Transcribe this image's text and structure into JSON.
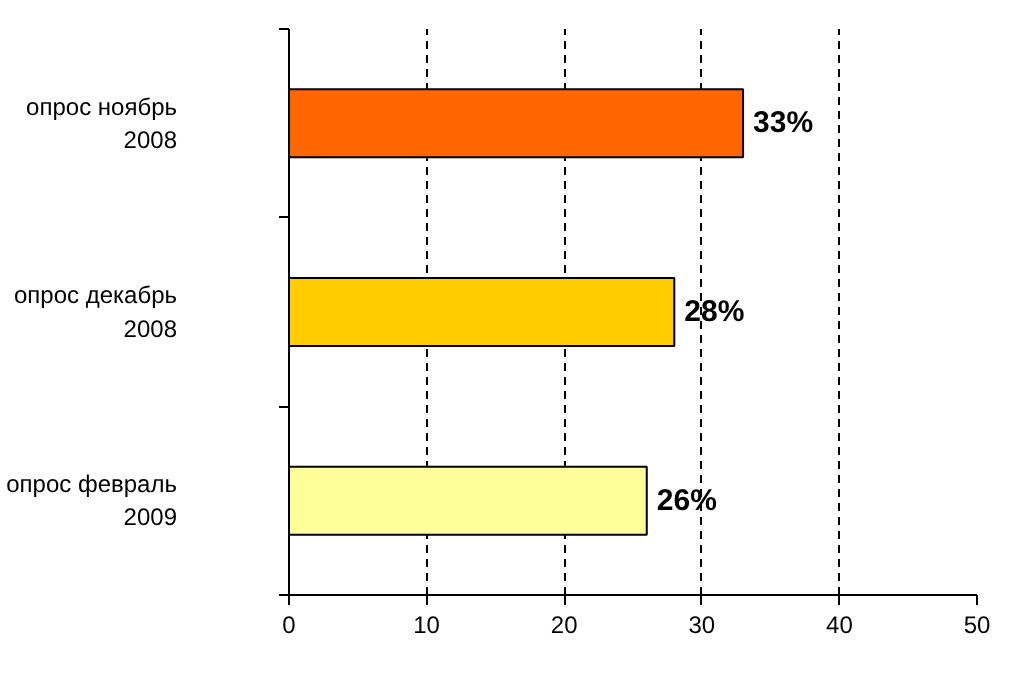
{
  "chart_data": {
    "type": "bar",
    "orientation": "horizontal",
    "categories": [
      "опрос ноябрь\n2008",
      "опрос декабрь\n2008",
      "опрос февраль\n2009"
    ],
    "values": [
      33,
      28,
      26
    ],
    "colors": [
      "#ff6600",
      "#ffcc00",
      "#ffff99"
    ],
    "value_labels": [
      "33%",
      "28%",
      "26%"
    ],
    "xlim": [
      0,
      50
    ],
    "xticks": [
      0,
      10,
      20,
      30,
      40,
      50
    ],
    "grid": "x"
  }
}
